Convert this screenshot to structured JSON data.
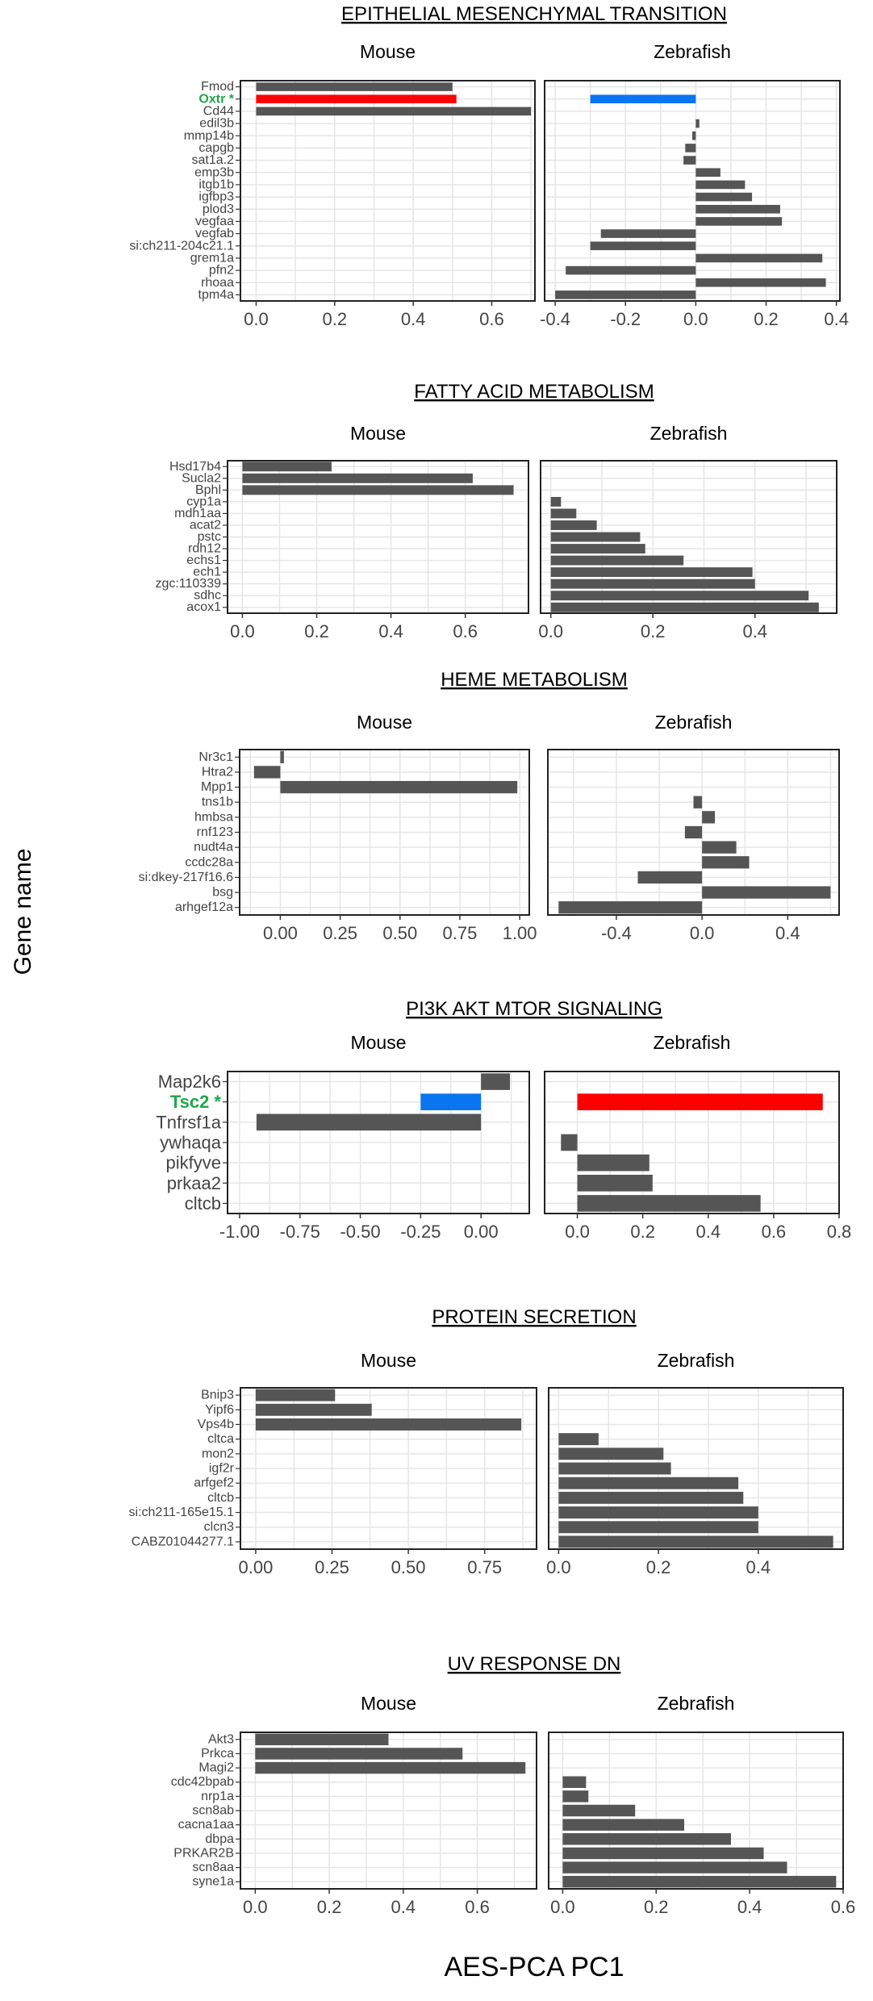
{
  "ylabel": "Gene name",
  "xlabel": "AES-PCA PC1",
  "colors": {
    "bar": "#555555",
    "up": "#ff0000",
    "down": "#0a75f0",
    "highlight_text": "#1ea84a",
    "grid": "#e6e6e6",
    "frame": "#222222"
  },
  "chart_data": [
    {
      "type": "bar",
      "orientation": "horizontal",
      "title": "EPITHELIAL MESENCHYMAL TRANSITION",
      "panels": [
        {
          "name": "Mouse",
          "xlim": [
            -0.04,
            0.71
          ],
          "ticks": [
            0,
            0.2,
            0.4,
            0.6
          ],
          "tick_labels": [
            "0.0",
            "0.2",
            "0.4",
            "0.6"
          ],
          "categories": [
            "Fmod",
            "Oxtr *",
            "Cd44",
            "edil3b",
            "mmp14b",
            "capgb",
            "sat1a.2",
            "emp3b",
            "itgb1b",
            "igfbp3",
            "plod3",
            "vegfaa",
            "vegfab",
            "si:ch211-204c21.1",
            "grem1a",
            "pfn2",
            "rhoaa",
            "tpm4a"
          ],
          "values": [
            0.5,
            0.51,
            0.7,
            null,
            null,
            null,
            null,
            null,
            null,
            null,
            null,
            null,
            null,
            null,
            null,
            null,
            null,
            null
          ],
          "highlight": [
            null,
            "up",
            null,
            null,
            null,
            null,
            null,
            null,
            null,
            null,
            null,
            null,
            null,
            null,
            null,
            null,
            null,
            null
          ]
        },
        {
          "name": "Zebrafish",
          "xlim": [
            -0.43,
            0.41
          ],
          "ticks": [
            -0.4,
            -0.2,
            0,
            0.2,
            0.4
          ],
          "tick_labels": [
            "-0.4",
            "-0.2",
            "0.0",
            "0.2",
            "0.4"
          ],
          "values": [
            null,
            -0.3,
            null,
            0.01,
            -0.01,
            -0.03,
            -0.035,
            0.07,
            0.14,
            0.16,
            0.24,
            0.245,
            -0.27,
            -0.3,
            0.36,
            -0.37,
            0.37,
            -0.4
          ],
          "highlight": [
            null,
            "down",
            null,
            null,
            null,
            null,
            null,
            null,
            null,
            null,
            null,
            null,
            null,
            null,
            null,
            null,
            null,
            null
          ]
        }
      ]
    },
    {
      "type": "bar",
      "orientation": "horizontal",
      "title": "FATTY ACID METABOLISM",
      "panels": [
        {
          "name": "Mouse",
          "xlim": [
            -0.04,
            0.77
          ],
          "ticks": [
            0,
            0.2,
            0.4,
            0.6
          ],
          "tick_labels": [
            "0.0",
            "0.2",
            "0.4",
            "0.6"
          ],
          "categories": [
            "Hsd17b4",
            "Sucla2",
            "Bphl",
            "cyp1a",
            "mdh1aa",
            "acat2",
            "pstc",
            "rdh12",
            "echs1",
            "ech1",
            "zgc:110339",
            "sdhc",
            "acox1"
          ],
          "values": [
            0.24,
            0.62,
            0.73,
            null,
            null,
            null,
            null,
            null,
            null,
            null,
            null,
            null,
            null
          ]
        },
        {
          "name": "Zebrafish",
          "xlim": [
            -0.02,
            0.56
          ],
          "ticks": [
            0,
            0.2,
            0.4
          ],
          "tick_labels": [
            "0.0",
            "0.2",
            "0.4"
          ],
          "values": [
            null,
            null,
            null,
            0.02,
            0.05,
            0.09,
            0.175,
            0.185,
            0.26,
            0.395,
            0.4,
            0.505,
            0.525
          ]
        }
      ]
    },
    {
      "type": "bar",
      "orientation": "horizontal",
      "title": "HEME METABOLISM",
      "panels": [
        {
          "name": "Mouse",
          "xlim": [
            -0.17,
            1.04
          ],
          "ticks": [
            0,
            0.25,
            0.5,
            0.75,
            1
          ],
          "tick_labels": [
            "0.00",
            "0.25",
            "0.50",
            "0.75",
            "1.00"
          ],
          "categories": [
            "Nr3c1",
            "Htra2",
            "Mpp1",
            "tns1b",
            "hmbsa",
            "rnf123",
            "nudt4a",
            "ccdc28a",
            "si:dkey-217f16.6",
            "bsg",
            "arhgef12a"
          ],
          "values": [
            0.015,
            -0.11,
            0.99,
            null,
            null,
            null,
            null,
            null,
            null,
            null,
            null
          ]
        },
        {
          "name": "Zebrafish",
          "xlim": [
            -0.72,
            0.64
          ],
          "ticks": [
            -0.4,
            0,
            0.4
          ],
          "tick_labels": [
            "-0.4",
            "0.0",
            "0.4"
          ],
          "values": [
            null,
            null,
            null,
            -0.04,
            0.06,
            -0.08,
            0.16,
            0.22,
            -0.3,
            0.6,
            -0.67
          ]
        }
      ]
    },
    {
      "type": "bar",
      "orientation": "horizontal",
      "title": "PI3K AKT MTOR SIGNALING",
      "large_labels": true,
      "panels": [
        {
          "name": "Mouse",
          "xlim": [
            -1.05,
            0.2
          ],
          "ticks": [
            -1,
            -0.75,
            -0.5,
            -0.25,
            0
          ],
          "tick_labels": [
            "-1.00",
            "-0.75",
            "-0.50",
            "-0.25",
            "0.00"
          ],
          "categories": [
            "Map2k6",
            "Tsc2 *",
            "Tnfrsf1a",
            "ywhaqa",
            "pikfyve",
            "prkaa2",
            "cltcb"
          ],
          "values": [
            0.12,
            -0.25,
            -0.93,
            null,
            null,
            null,
            null
          ],
          "highlight": [
            null,
            "down",
            null,
            null,
            null,
            null,
            null
          ]
        },
        {
          "name": "Zebrafish",
          "xlim": [
            -0.1,
            0.8
          ],
          "ticks": [
            0,
            0.2,
            0.4,
            0.6,
            0.8
          ],
          "tick_labels": [
            "0.0",
            "0.2",
            "0.4",
            "0.6",
            "0.8"
          ],
          "values": [
            null,
            0.75,
            null,
            -0.05,
            0.22,
            0.23,
            0.56
          ],
          "highlight": [
            null,
            "up",
            null,
            null,
            null,
            null,
            null
          ]
        }
      ]
    },
    {
      "type": "bar",
      "orientation": "horizontal",
      "title": "PROTEIN SECRETION",
      "panels": [
        {
          "name": "Mouse",
          "xlim": [
            -0.05,
            0.92
          ],
          "ticks": [
            0,
            0.25,
            0.5,
            0.75
          ],
          "tick_labels": [
            "0.00",
            "0.25",
            "0.50",
            "0.75"
          ],
          "categories": [
            "Bnip3",
            "Yipf6",
            "Vps4b",
            "cltca",
            "mon2",
            "igf2r",
            "arfgef2",
            "cltcb",
            "si:ch211-165e15.1",
            "clcn3",
            "CABZ01044277.1"
          ],
          "values": [
            0.26,
            0.38,
            0.87,
            null,
            null,
            null,
            null,
            null,
            null,
            null,
            null
          ]
        },
        {
          "name": "Zebrafish",
          "xlim": [
            -0.02,
            0.57
          ],
          "ticks": [
            0,
            0.2,
            0.4
          ],
          "tick_labels": [
            "0.0",
            "0.2",
            "0.4"
          ],
          "values": [
            null,
            null,
            null,
            0.08,
            0.21,
            0.225,
            0.36,
            0.37,
            0.4,
            0.4,
            0.55
          ]
        }
      ]
    },
    {
      "type": "bar",
      "orientation": "horizontal",
      "title": "UV RESPONSE DN",
      "panels": [
        {
          "name": "Mouse",
          "xlim": [
            -0.04,
            0.76
          ],
          "ticks": [
            0,
            0.2,
            0.4,
            0.6
          ],
          "tick_labels": [
            "0.0",
            "0.2",
            "0.4",
            "0.6"
          ],
          "categories": [
            "Akt3",
            "Prkca",
            "Magi2",
            "cdc42bpab",
            "nrp1a",
            "scn8ab",
            "cacna1aa",
            "dbpa",
            "PRKAR2B",
            "scn8aa",
            "syne1a"
          ],
          "values": [
            0.36,
            0.56,
            0.73,
            null,
            null,
            null,
            null,
            null,
            null,
            null,
            null
          ]
        },
        {
          "name": "Zebrafish",
          "xlim": [
            -0.03,
            0.6
          ],
          "ticks": [
            0,
            0.2,
            0.4,
            0.6
          ],
          "tick_labels": [
            "0.0",
            "0.2",
            "0.4",
            "0.6"
          ],
          "values": [
            null,
            null,
            null,
            0.05,
            0.055,
            0.155,
            0.26,
            0.36,
            0.43,
            0.48,
            0.585
          ]
        }
      ]
    }
  ]
}
